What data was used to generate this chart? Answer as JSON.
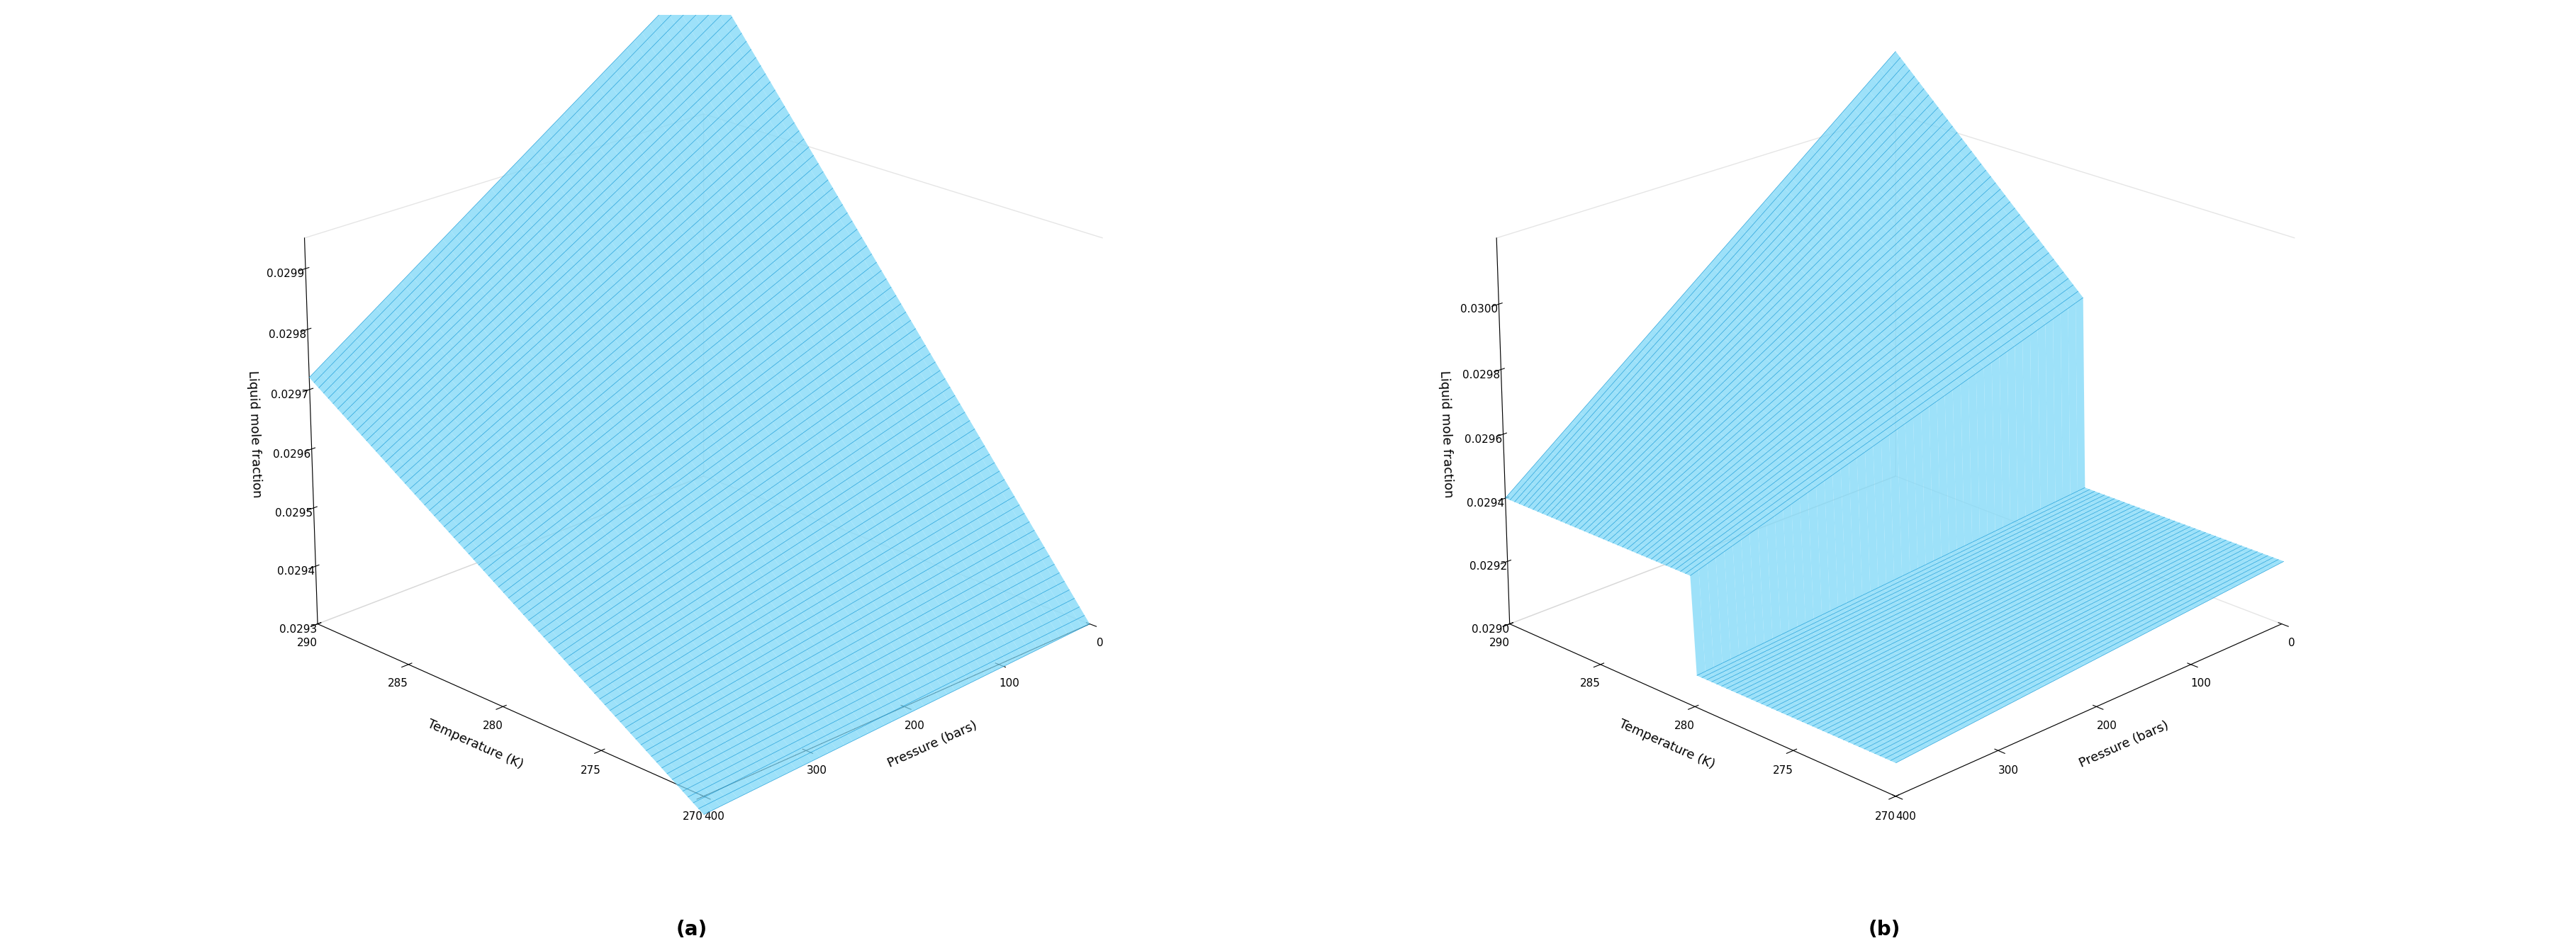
{
  "T_min": 270,
  "T_max": 290,
  "P_min": 0,
  "P_max": 400,
  "T_ticks": [
    270,
    275,
    280,
    285,
    290
  ],
  "P_ticks": [
    0,
    100,
    200,
    300,
    400
  ],
  "zlim_a": [
    0.0293,
    0.02995
  ],
  "zlim_b": [
    0.029,
    0.0302
  ],
  "zticks_a": [
    0.0293,
    0.0294,
    0.0295,
    0.0296,
    0.0297,
    0.0298,
    0.0299
  ],
  "zticks_b": [
    0.029,
    0.0292,
    0.0294,
    0.0296,
    0.0298,
    0.03
  ],
  "zlabel": "Liquid mole fraction",
  "xlabel": "Temperature (K)",
  "plabel": "Pressure (bars)",
  "label_a": "(a)",
  "label_b": "(b)",
  "surface_color": "#7dd8f8",
  "line_color": "#1a9cd8",
  "T_steps": 80,
  "P_steps": 50,
  "elev": 22,
  "azim_a": 225,
  "azim_b": 225
}
